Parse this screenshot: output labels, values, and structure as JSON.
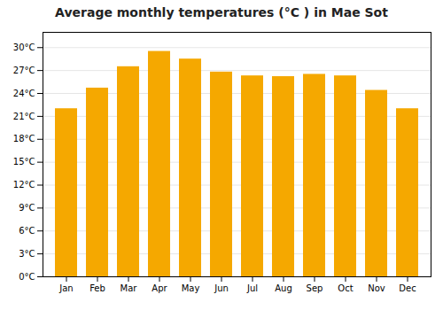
{
  "chart_data": {
    "type": "bar",
    "title": "Average monthly temperatures (°C ) in Mae Sot",
    "categories": [
      "Jan",
      "Feb",
      "Mar",
      "Apr",
      "May",
      "Jun",
      "Jul",
      "Aug",
      "Sep",
      "Oct",
      "Nov",
      "Dec"
    ],
    "values": [
      22.0,
      24.7,
      27.5,
      29.5,
      28.5,
      26.8,
      26.3,
      26.2,
      26.5,
      26.3,
      24.4,
      22.0
    ],
    "color": "#F5A800",
    "ylim": [
      0,
      32
    ],
    "yticks": [
      {
        "value": 0,
        "label": "0°C"
      },
      {
        "value": 3,
        "label": "3°C"
      },
      {
        "value": 6,
        "label": "6°C"
      },
      {
        "value": 9,
        "label": "9°C"
      },
      {
        "value": 12,
        "label": "12°C"
      },
      {
        "value": 15,
        "label": "15°C"
      },
      {
        "value": 18,
        "label": "18°C"
      },
      {
        "value": 21,
        "label": "21°C"
      },
      {
        "value": 24,
        "label": "24°C"
      },
      {
        "value": 27,
        "label": "27°C"
      },
      {
        "value": 30,
        "label": "30°C"
      }
    ],
    "grid": true
  }
}
